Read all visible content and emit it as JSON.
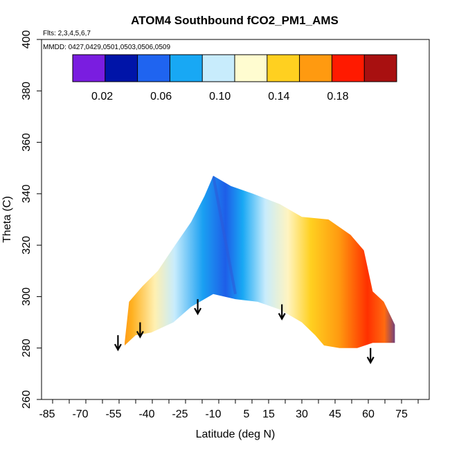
{
  "chart_data": {
    "type": "heatmap",
    "title": "ATOM4 Southbound fCO2_PM1_AMS",
    "subtitle_flights": "Flts: 2,3,4,5,6,7",
    "subtitle_dates": "MMDD: 0427,0429,0501,0503,0506,0509",
    "xlabel": "Latitude (deg N)",
    "ylabel": "Theta (C)",
    "xlim": [
      -90,
      90
    ],
    "ylim": [
      260,
      400
    ],
    "x_ticks": [
      -85,
      -70,
      -55,
      -40,
      -25,
      -10,
      5,
      15,
      30,
      45,
      60,
      75
    ],
    "y_ticks": [
      260,
      280,
      300,
      320,
      340,
      360,
      380,
      400
    ],
    "colorbar": {
      "range": [
        0.0,
        0.22
      ],
      "tick_values": [
        0.02,
        0.06,
        0.1,
        0.14,
        0.18
      ],
      "tick_labels": [
        "0.02",
        "0.06",
        "0.10",
        "0.14",
        "0.18"
      ],
      "colors": [
        "#7a1de0",
        "#0014a8",
        "#1f64f0",
        "#18a8f4",
        "#c8ecfc",
        "#fffcd0",
        "#ffd020",
        "#ff9a10",
        "#ff1a00",
        "#a81010"
      ]
    },
    "field": {
      "theta_bottom": [
        {
          "lat": -50,
          "theta": 281
        },
        {
          "lat": -45,
          "theta": 285
        },
        {
          "lat": -38,
          "theta": 286
        },
        {
          "lat": -28,
          "theta": 290
        },
        {
          "lat": -20,
          "theta": 296
        },
        {
          "lat": -10,
          "theta": 301
        },
        {
          "lat": 0,
          "theta": 299
        },
        {
          "lat": 10,
          "theta": 298
        },
        {
          "lat": 20,
          "theta": 295
        },
        {
          "lat": 30,
          "theta": 290
        },
        {
          "lat": 36,
          "theta": 285
        },
        {
          "lat": 40,
          "theta": 281
        },
        {
          "lat": 47,
          "theta": 280
        },
        {
          "lat": 55,
          "theta": 280
        },
        {
          "lat": 62,
          "theta": 282
        },
        {
          "lat": 72,
          "theta": 282
        }
      ],
      "theta_top": [
        {
          "lat": -50,
          "theta": 282
        },
        {
          "lat": -48,
          "theta": 298
        },
        {
          "lat": -42,
          "theta": 304
        },
        {
          "lat": -35,
          "theta": 310
        },
        {
          "lat": -28,
          "theta": 319
        },
        {
          "lat": -20,
          "theta": 329
        },
        {
          "lat": -14,
          "theta": 339
        },
        {
          "lat": -10,
          "theta": 347
        },
        {
          "lat": -2,
          "theta": 343
        },
        {
          "lat": 8,
          "theta": 340
        },
        {
          "lat": 20,
          "theta": 336
        },
        {
          "lat": 30,
          "theta": 331
        },
        {
          "lat": 42,
          "theta": 330
        },
        {
          "lat": 52,
          "theta": 324
        },
        {
          "lat": 58,
          "theta": 318
        },
        {
          "lat": 62,
          "theta": 302
        },
        {
          "lat": 67,
          "theta": 298
        },
        {
          "lat": 72,
          "theta": 289
        },
        {
          "lat": 72,
          "theta": 282
        }
      ]
    },
    "arrows": [
      {
        "lat": -53,
        "theta": 285
      },
      {
        "lat": -43,
        "theta": 290
      },
      {
        "lat": -17,
        "theta": 299
      },
      {
        "lat": 21,
        "theta": 297
      },
      {
        "lat": 61,
        "theta": 280
      }
    ]
  }
}
